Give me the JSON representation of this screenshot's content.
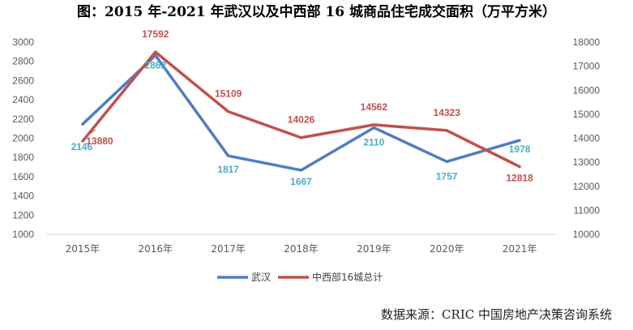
{
  "title": "图：2015 年-2021 年武汉以及中西部 16 城商品住宅成交面积（万平方米）",
  "source": "数据来源：CRIC 中国房地产决策咨询系统",
  "colors": {
    "wuhan": "#4e7ec2",
    "central_west": "#c0504d",
    "wuhan_label": "#4bacc6",
    "central_west_label": "#c0504d",
    "axis": "#d9d9d9"
  },
  "chart_data": {
    "type": "line",
    "title": "图：2015 年-2021 年武汉以及中西部 16 城商品住宅成交面积（万平方米）",
    "categories": [
      "2015年",
      "2016年",
      "2017年",
      "2018年",
      "2019年",
      "2020年",
      "2021年"
    ],
    "series": [
      {
        "name": "武汉",
        "axis": "left",
        "values": [
          2146,
          2862,
          1817,
          1667,
          2110,
          1757,
          1978
        ]
      },
      {
        "name": "中西部16城总计",
        "axis": "right",
        "values": [
          13880,
          17592,
          15109,
          14026,
          14562,
          14323,
          12818
        ]
      }
    ],
    "y_left": {
      "min": 1000,
      "max": 3000,
      "step": 200,
      "ticks": [
        "1000",
        "1200",
        "1400",
        "1600",
        "1800",
        "2000",
        "2200",
        "2400",
        "2600",
        "2800",
        "3000"
      ]
    },
    "y_right": {
      "min": 10000,
      "max": 18000,
      "step": 1000,
      "ticks": [
        "10000",
        "11000",
        "12000",
        "13000",
        "14000",
        "15000",
        "16000",
        "17000",
        "18000"
      ]
    },
    "grid": false,
    "legend": "bottom"
  }
}
